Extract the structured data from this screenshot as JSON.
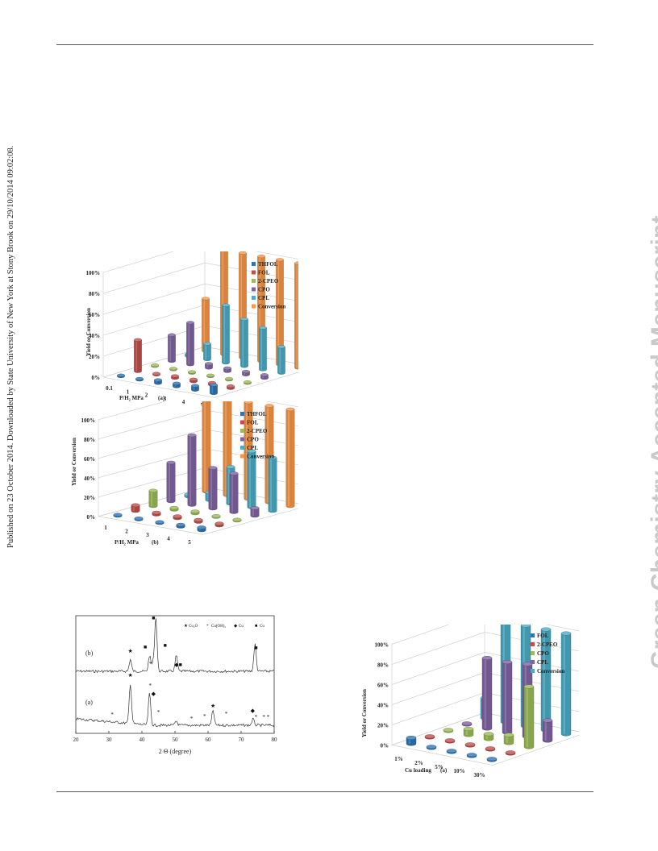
{
  "sidebar_left": "Published on 23 October 2014. Downloaded by State University of New York at Stony Brook on 29/10/2014 09:02:08.",
  "watermark": "Green Chemistry Accepted Manuscript",
  "chart_data": [
    {
      "type": "bar",
      "variant": "3d-bar",
      "categories": [
        "0.1",
        "1",
        "2",
        "3",
        "4",
        "5"
      ],
      "xlabel": "P/H₂ MPa",
      "panel_label": "(a)",
      "ylabel": "Yield or Conversion",
      "yticks": [
        "0%",
        "20%",
        "40%",
        "60%",
        "80%",
        "100%"
      ],
      "ylim": [
        0,
        100
      ],
      "legend_position": "right",
      "series": [
        {
          "name": "THFOL",
          "color": "#2e75b6",
          "values": [
            1,
            1,
            3,
            3,
            4,
            8
          ]
        },
        {
          "name": "FOL",
          "color": "#c0504d",
          "values": [
            30,
            1,
            2,
            2,
            2,
            2
          ]
        },
        {
          "name": "2-CPEO",
          "color": "#9bbb59",
          "values": [
            1,
            1,
            1,
            1,
            1,
            1
          ]
        },
        {
          "name": "CPO",
          "color": "#8064a2",
          "values": [
            25,
            40,
            4,
            3,
            3,
            3
          ]
        },
        {
          "name": "CPL",
          "color": "#4bacc6",
          "values": [
            2,
            15,
            55,
            45,
            40,
            25
          ]
        },
        {
          "name": "Conversion",
          "color": "#f79646",
          "values": [
            50,
            100,
            100,
            100,
            100,
            100
          ]
        }
      ]
    },
    {
      "type": "bar",
      "variant": "3d-bar",
      "categories": [
        "1",
        "2",
        "3",
        "4",
        "5"
      ],
      "xlabel": "P/H₂ MPa",
      "panel_label": "(b)",
      "ylabel": "Yield or Conversion",
      "yticks": [
        "0%",
        "20%",
        "40%",
        "60%",
        "80%",
        "100%"
      ],
      "ylim": [
        0,
        100
      ],
      "legend_position": "right",
      "series": [
        {
          "name": "THFOL",
          "color": "#2e75b6",
          "values": [
            1,
            1,
            1,
            2,
            3
          ]
        },
        {
          "name": "FOL",
          "color": "#c0504d",
          "values": [
            6,
            2,
            2,
            2,
            2
          ]
        },
        {
          "name": "2-CPEO",
          "color": "#9bbb59",
          "values": [
            16,
            2,
            2,
            1,
            1
          ]
        },
        {
          "name": "CPO",
          "color": "#8064a2",
          "values": [
            40,
            72,
            42,
            40,
            8
          ]
        },
        {
          "name": "CPL",
          "color": "#4bacc6",
          "values": [
            2,
            8,
            38,
            58,
            55
          ]
        },
        {
          "name": "Conversion",
          "color": "#f79646",
          "values": [
            100,
            100,
            100,
            100,
            100
          ]
        }
      ]
    },
    {
      "type": "line",
      "variant": "xrd",
      "xlabel": "2 Θ  (degree)",
      "xticks": [
        "20",
        "30",
        "40",
        "50",
        "60",
        "70",
        "80"
      ],
      "xlim": [
        20,
        80
      ],
      "legend": [
        "Cu₂O",
        "Cu(OH)₂",
        "Cu",
        "Cu"
      ],
      "legend_symbols": [
        "★",
        "*",
        "◆",
        "■"
      ],
      "series": [
        {
          "name": "(b)",
          "peaks": [
            [
              36.5,
              30
            ],
            [
              42.3,
              40
            ],
            [
              43.3,
              20
            ],
            [
              44.2,
              140
            ],
            [
              50.4,
              40
            ],
            [
              74.2,
              70
            ]
          ]
        },
        {
          "name": "(a)",
          "peaks": [
            [
              36.5,
              95
            ],
            [
              42.3,
              75
            ],
            [
              61.5,
              35
            ],
            [
              50.4,
              10
            ],
            [
              73.6,
              15
            ]
          ]
        }
      ],
      "markers": [
        {
          "symbol": "★",
          "x": 36.5,
          "trace": "(b)"
        },
        {
          "symbol": "■",
          "x": 41.0,
          "trace": "(b)"
        },
        {
          "symbol": "*",
          "x": 42.6,
          "trace": "(b)"
        },
        {
          "symbol": "■",
          "x": 43.5,
          "trace": "(b)"
        },
        {
          "symbol": "■",
          "x": 47.0,
          "trace": "(b)"
        },
        {
          "symbol": "◆■",
          "x": 51.0,
          "trace": "(b)"
        },
        {
          "symbol": "■",
          "x": 74.5,
          "trace": "(b)"
        },
        {
          "symbol": "★",
          "x": 36.5,
          "trace": "(a)"
        },
        {
          "symbol": "*",
          "x": 42.5,
          "trace": "(a)"
        },
        {
          "symbol": "◆",
          "x": 43.5,
          "trace": "(a)"
        },
        {
          "symbol": "*",
          "x": 31.0,
          "trace": "(a)"
        },
        {
          "symbol": "*",
          "x": 45.0,
          "trace": "(a)"
        },
        {
          "symbol": "*",
          "x": 55.0,
          "trace": "(a)"
        },
        {
          "symbol": "*",
          "x": 59.0,
          "trace": "(a)"
        },
        {
          "symbol": "★",
          "x": 61.5,
          "trace": "(a)"
        },
        {
          "symbol": "*",
          "x": 65.5,
          "trace": "(a)"
        },
        {
          "symbol": "◆",
          "x": 73.5,
          "trace": "(a)"
        },
        {
          "symbol": "*",
          "x": 74.5,
          "trace": "(a)"
        },
        {
          "symbol": "* *",
          "x": 77.5,
          "trace": "(a)"
        }
      ]
    },
    {
      "type": "bar",
      "variant": "3d-bar",
      "categories": [
        "1%",
        "2%",
        "5%",
        "10%",
        "30%"
      ],
      "xlabel": "Cu loading",
      "panel_label": "(a)",
      "ylabel": "Yield or Conversion",
      "yticks": [
        "0%",
        "20%",
        "40%",
        "60%",
        "80%",
        "100%"
      ],
      "ylim": [
        0,
        100
      ],
      "legend_position": "right",
      "series": [
        {
          "name": "FOL",
          "color": "#2e75b6",
          "values": [
            6,
            1,
            1,
            1,
            1
          ]
        },
        {
          "name": "2-CPEO",
          "color": "#c0504d",
          "values": [
            1,
            1,
            1,
            1,
            1
          ]
        },
        {
          "name": "CPO",
          "color": "#9bbb59",
          "values": [
            1,
            6,
            5,
            8,
            60
          ]
        },
        {
          "name": "CPL",
          "color": "#8064a2",
          "values": [
            1,
            70,
            70,
            72,
            20
          ]
        },
        {
          "name": "Conversion",
          "color": "#4bacc6",
          "values": [
            20,
            100,
            100,
            100,
            100
          ]
        }
      ]
    }
  ]
}
